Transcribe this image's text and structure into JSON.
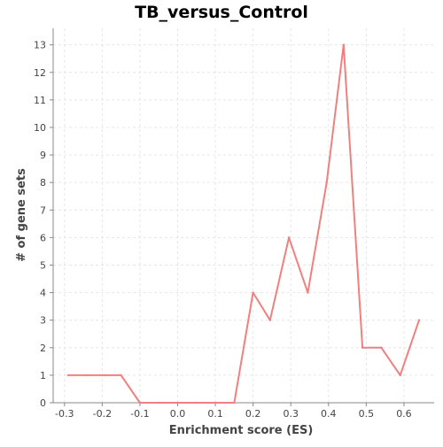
{
  "chart_data": {
    "type": "line",
    "title": "TB_versus_Control",
    "xlabel": "Enrichment score (ES)",
    "ylabel": "# of gene sets",
    "xlim": [
      -0.33,
      0.68
    ],
    "ylim": [
      0,
      13.6
    ],
    "x_ticks": [
      "-0.3",
      "-0.2",
      "-0.1",
      "0.0",
      "0.1",
      "0.2",
      "0.3",
      "0.4",
      "0.5",
      "0.6"
    ],
    "y_ticks": [
      "0",
      "1",
      "2",
      "3",
      "4",
      "5",
      "6",
      "7",
      "8",
      "9",
      "10",
      "11",
      "12",
      "13"
    ],
    "grid": true,
    "legend": "none",
    "series": [
      {
        "color": "#f08080",
        "x": [
          -0.29,
          -0.24,
          -0.19,
          -0.15,
          -0.1,
          -0.05,
          0.0,
          0.05,
          0.1,
          0.15,
          0.2,
          0.245,
          0.295,
          0.345,
          0.395,
          0.44,
          0.49,
          0.54,
          0.59,
          0.64
        ],
        "y": [
          1,
          1,
          1,
          1,
          0,
          0,
          0,
          0,
          0,
          0,
          4,
          3,
          6,
          4,
          8,
          13,
          2,
          2,
          1,
          3
        ]
      }
    ]
  }
}
